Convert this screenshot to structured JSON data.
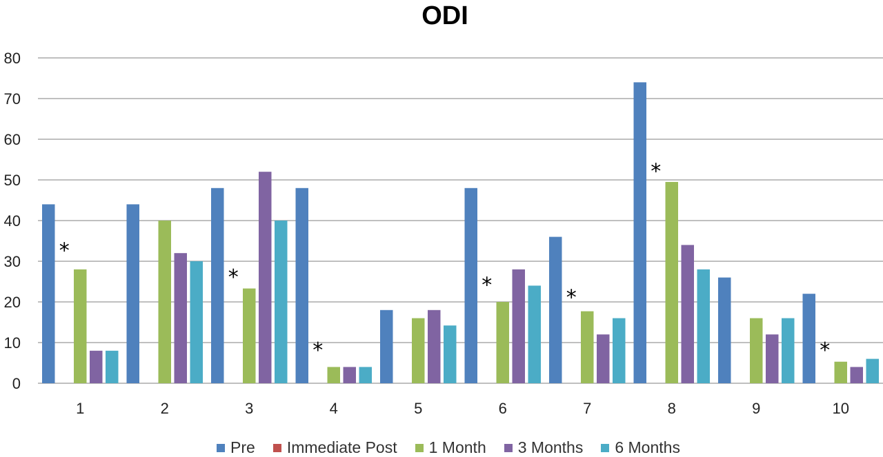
{
  "chart_data": {
    "type": "bar",
    "title": "ODI",
    "xlabel": "",
    "ylabel": "",
    "categories": [
      "1",
      "2",
      "3",
      "4",
      "5",
      "6",
      "7",
      "8",
      "9",
      "10"
    ],
    "ylim": [
      0,
      80
    ],
    "yticks": [
      "0",
      "10",
      "20",
      "30",
      "40",
      "50",
      "60",
      "70",
      "80"
    ],
    "grid": true,
    "legend_position": "bottom",
    "series": [
      {
        "name": "Pre",
        "color": "#4F81BD",
        "values": [
          44,
          44,
          48,
          48,
          18,
          48,
          36,
          74,
          26,
          22
        ]
      },
      {
        "name": "Immediate Post",
        "color": "#C0504D",
        "values": [
          0,
          0,
          0,
          0,
          0,
          0,
          0,
          0,
          0,
          0
        ]
      },
      {
        "name": "1 Month",
        "color": "#9BBB59",
        "values": [
          28,
          40,
          23.3,
          4,
          16,
          20,
          17.7,
          49.5,
          16,
          5.3
        ]
      },
      {
        "name": "3 Months",
        "color": "#8064A2",
        "values": [
          8,
          32,
          52,
          4,
          18,
          28,
          12,
          34,
          12,
          4
        ]
      },
      {
        "name": "6 Months",
        "color": "#4BACC6",
        "values": [
          8,
          30,
          40,
          4,
          14.2,
          24,
          16,
          28,
          16,
          6
        ]
      }
    ],
    "annotations": [
      {
        "text": "*",
        "category": "1",
        "y": 34
      },
      {
        "text": "*",
        "category": "3",
        "y": 27.5
      },
      {
        "text": "*",
        "category": "4",
        "y": 9.5
      },
      {
        "text": "*",
        "category": "6",
        "y": 25.5
      },
      {
        "text": "*",
        "category": "7",
        "y": 22.5
      },
      {
        "text": "*",
        "category": "8",
        "y": 53.5
      },
      {
        "text": "*",
        "category": "10",
        "y": 9.5
      }
    ]
  }
}
